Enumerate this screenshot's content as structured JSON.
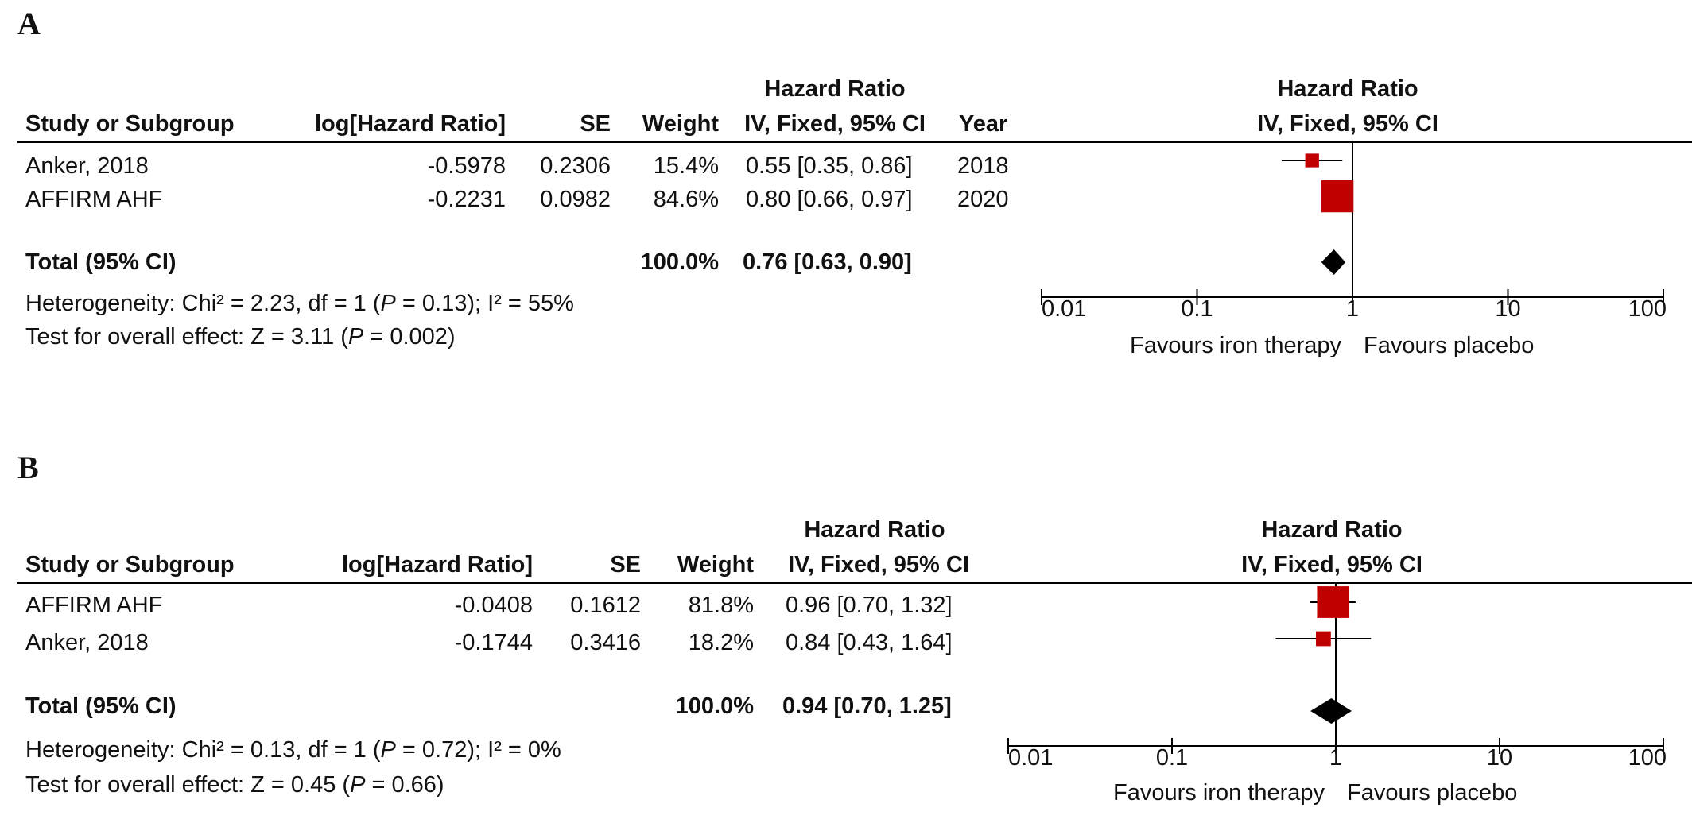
{
  "chart_data": [
    {
      "type": "forest",
      "panel_label": "A",
      "scale": "log",
      "xlim": [
        0.01,
        100
      ],
      "x_ticks": [
        "0.01",
        "0.1",
        "1",
        "10",
        "100"
      ],
      "x_tick_values": [
        0.01,
        0.1,
        1,
        10,
        100
      ],
      "favours_left": "Favours iron therapy",
      "favours_right": "Favours placebo",
      "headers": {
        "effect_group": "Hazard Ratio",
        "study": "Study or Subgroup",
        "log": "log[Hazard Ratio]",
        "se": "SE",
        "weight": "Weight",
        "ci": "IV, Fixed, 95% CI",
        "year": "Year",
        "plot_title": "Hazard Ratio",
        "plot_subtitle": "IV, Fixed, 95% CI"
      },
      "studies": [
        {
          "name": "Anker, 2018",
          "log_hr": "-0.5978",
          "se": "0.2306",
          "weight": "15.4%",
          "weight_value": 15.4,
          "ci_text": "0.55 [0.35, 0.86]",
          "year": "2018",
          "hr": 0.55,
          "lo": 0.35,
          "hi": 0.86
        },
        {
          "name": "AFFIRM AHF",
          "log_hr": "-0.2231",
          "se": "0.0982",
          "weight": "84.6%",
          "weight_value": 84.6,
          "ci_text": "0.80 [0.66, 0.97]",
          "year": "2020",
          "hr": 0.8,
          "lo": 0.66,
          "hi": 0.97
        }
      ],
      "total": {
        "label": "Total (95% CI)",
        "weight": "100.0%",
        "ci_text": "0.76 [0.63, 0.90]",
        "hr": 0.76,
        "lo": 0.63,
        "hi": 0.9
      },
      "heterogeneity": {
        "prefix": "Heterogeneity: Chi² = 2.23, df = 1 (",
        "p": "P",
        "middle": " = 0.13); I² = 55%"
      },
      "overall": {
        "prefix": "Test for overall effect: Z = 3.11 (",
        "p": "P",
        "middle": " = 0.002)"
      },
      "colors": {
        "square": "#c00000",
        "line": "#000000",
        "diamond": "#000000"
      }
    },
    {
      "type": "forest",
      "panel_label": "B",
      "scale": "log",
      "xlim": [
        0.01,
        100
      ],
      "x_ticks": [
        "0.01",
        "0.1",
        "1",
        "10",
        "100"
      ],
      "x_tick_values": [
        0.01,
        0.1,
        1,
        10,
        100
      ],
      "favours_left": "Favours iron therapy",
      "favours_right": "Favours placebo",
      "headers": {
        "effect_group": "Hazard Ratio",
        "study": "Study or Subgroup",
        "log": "log[Hazard Ratio]",
        "se": "SE",
        "weight": "Weight",
        "ci": "IV, Fixed, 95% CI",
        "plot_title": "Hazard Ratio",
        "plot_subtitle": "IV, Fixed, 95% CI"
      },
      "studies": [
        {
          "name": "AFFIRM AHF",
          "log_hr": "-0.0408",
          "se": "0.1612",
          "weight": "81.8%",
          "weight_value": 81.8,
          "ci_text": "0.96 [0.70, 1.32]",
          "hr": 0.96,
          "lo": 0.7,
          "hi": 1.32
        },
        {
          "name": "Anker, 2018",
          "log_hr": "-0.1744",
          "se": "0.3416",
          "weight": "18.2%",
          "weight_value": 18.2,
          "ci_text": "0.84 [0.43, 1.64]",
          "hr": 0.84,
          "lo": 0.43,
          "hi": 1.64
        }
      ],
      "total": {
        "label": "Total (95% CI)",
        "weight": "100.0%",
        "ci_text": "0.94 [0.70, 1.25]",
        "hr": 0.94,
        "lo": 0.7,
        "hi": 1.25
      },
      "heterogeneity": {
        "prefix": "Heterogeneity: Chi² = 0.13, df = 1 (",
        "p": "P",
        "middle": " = 0.72); I² = 0%"
      },
      "overall": {
        "prefix": "Test for overall effect: Z = 0.45 (",
        "p": "P",
        "middle": " = 0.66)"
      },
      "colors": {
        "square": "#c00000",
        "line": "#000000",
        "diamond": "#000000"
      }
    }
  ]
}
